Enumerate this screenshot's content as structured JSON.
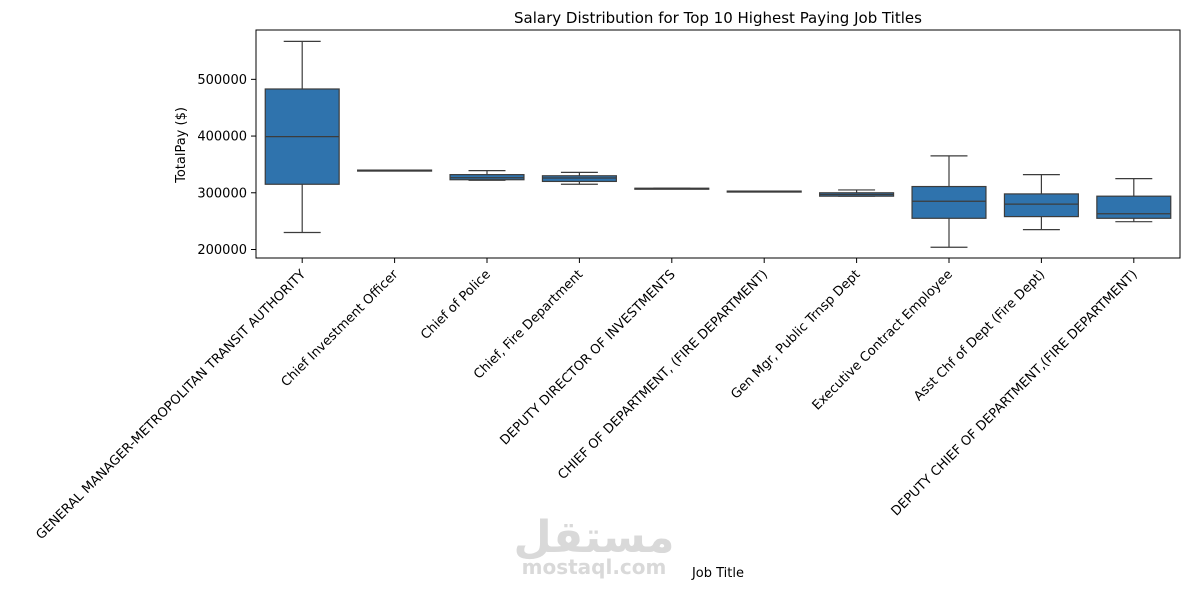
{
  "chart_data": {
    "type": "box",
    "title": "Salary Distribution for Top 10 Highest Paying Job Titles",
    "xlabel": "Job Title",
    "ylabel": "TotalPay ($)",
    "ylim": [
      185000,
      587000
    ],
    "yticks": [
      200000,
      300000,
      400000,
      500000
    ],
    "ytick_labels": [
      "200000",
      "300000",
      "400000",
      "500000"
    ],
    "grid": false,
    "box_color": "#2f73ad",
    "line_color": "#3c3c3c",
    "categories": [
      "GENERAL MANAGER-METROPOLITAN TRANSIT AUTHORITY",
      "Chief Investment Officer",
      "Chief of Police",
      "Chief, Fire Department",
      "DEPUTY DIRECTOR OF INVESTMENTS",
      "CHIEF OF DEPARTMENT, (FIRE DEPARTMENT)",
      "Gen Mgr, Public Trnsp Dept",
      "Executive Contract Employee",
      "Asst Chf of Dept (Fire Dept)",
      "DEPUTY CHIEF OF DEPARTMENT,(FIRE DEPARTMENT)"
    ],
    "boxes": [
      {
        "whislo": 230000,
        "q1": 315000,
        "med": 399000,
        "q3": 483000,
        "whishi": 567000
      },
      {
        "whislo": 339000,
        "q1": 339000,
        "med": 339500,
        "q3": 340000,
        "whishi": 340000
      },
      {
        "whislo": 322000,
        "q1": 323000,
        "med": 326500,
        "q3": 332000,
        "whishi": 339000
      },
      {
        "whislo": 315000,
        "q1": 320000,
        "med": 326000,
        "q3": 330000,
        "whishi": 336000
      },
      {
        "whislo": 307000,
        "q1": 307000,
        "med": 307500,
        "q3": 308000,
        "whishi": 308000
      },
      {
        "whislo": 302000,
        "q1": 302000,
        "med": 302500,
        "q3": 303000,
        "whishi": 303000
      },
      {
        "whislo": 294000,
        "q1": 294000,
        "med": 297000,
        "q3": 300000,
        "whishi": 305000
      },
      {
        "whislo": 204000,
        "q1": 255000,
        "med": 285000,
        "q3": 311000,
        "whishi": 365000
      },
      {
        "whislo": 235000,
        "q1": 258000,
        "med": 280000,
        "q3": 298000,
        "whishi": 332000
      },
      {
        "whislo": 249000,
        "q1": 255000,
        "med": 263000,
        "q3": 294000,
        "whishi": 325000
      }
    ]
  },
  "watermark": {
    "arabic": "مستقل",
    "latin": "mostaql.com"
  }
}
